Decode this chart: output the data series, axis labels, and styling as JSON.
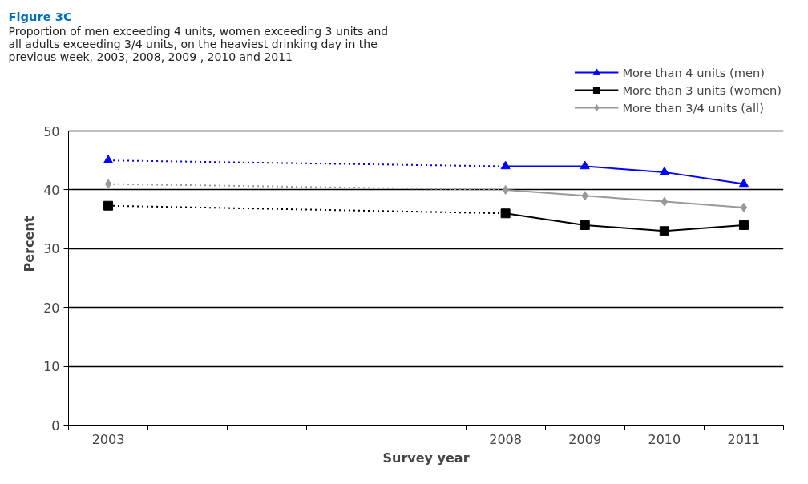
{
  "chart_data": {
    "type": "line",
    "title": "Figure 3C",
    "subtitle": "Proportion of men exceeding 4 units, women exceeding 3 units and\nall adults exceeding 3/4 units, on the heaviest drinking day in the\nprevious week, 2003, 2008, 2009 , 2010 and 2011",
    "xlabel": "Survey year",
    "ylabel": "Percent",
    "categories": [
      "2003",
      null,
      null,
      null,
      null,
      "2008",
      "2009",
      "2010",
      "2011"
    ],
    "ylim": [
      0,
      50
    ],
    "yticks": [
      0,
      10,
      20,
      30,
      40,
      50
    ],
    "grid": "y",
    "legend": "top right",
    "series": [
      {
        "name": "More than 4 units (men)",
        "color": "#0000ff",
        "marker": "triangle",
        "line_style": "solid",
        "values": [
          45,
          null,
          null,
          null,
          null,
          44,
          44,
          43,
          41
        ]
      },
      {
        "name": "More than 3 units (women)",
        "color": "#000000",
        "marker": "square",
        "line_style": "solid",
        "values": [
          37.3,
          null,
          null,
          null,
          null,
          36,
          34,
          33,
          34
        ]
      },
      {
        "name": "More than 3/4 units (all)",
        "color": "#999999",
        "marker": "diamond",
        "line_style": "solid",
        "values": [
          41,
          null,
          null,
          null,
          null,
          40,
          39,
          38,
          37
        ]
      }
    ]
  }
}
